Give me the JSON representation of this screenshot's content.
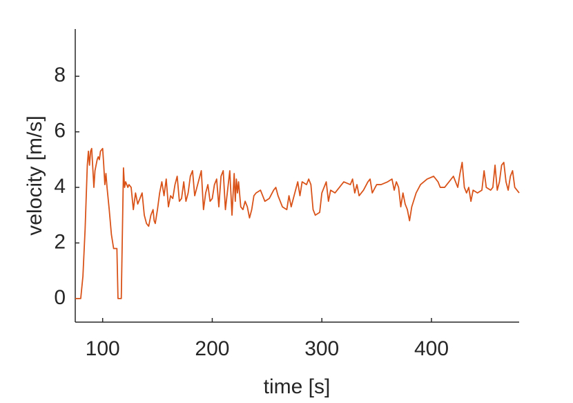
{
  "chart_data": {
    "type": "line",
    "x_label": "time [s]",
    "y_label": "velocity [m/s]",
    "xlim": [
      75,
      480
    ],
    "ylim": [
      -0.85,
      9.7
    ],
    "xticks": [
      100,
      200,
      300,
      400
    ],
    "yticks": [
      0,
      2,
      4,
      6,
      8
    ],
    "grid": false,
    "series": [
      {
        "color": "#d95319",
        "x": [
          75,
          78,
          80,
          82,
          84,
          86,
          87,
          88,
          89,
          90,
          92,
          93,
          95,
          96,
          97,
          98,
          100,
          101,
          102,
          103,
          104,
          106,
          108,
          110,
          113,
          114,
          117,
          119,
          120,
          121,
          123,
          124,
          126,
          128,
          130,
          132,
          134,
          136,
          138,
          140,
          142,
          144,
          146,
          147,
          148,
          150,
          152,
          154,
          156,
          158,
          160,
          162,
          164,
          166,
          168,
          170,
          172,
          174,
          176,
          178,
          180,
          182,
          184,
          186,
          188,
          190,
          192,
          194,
          196,
          198,
          200,
          202,
          204,
          206,
          208,
          210,
          212,
          214,
          216,
          218,
          220,
          221,
          222,
          223,
          224,
          226,
          228,
          230,
          232,
          234,
          236,
          238,
          240,
          244,
          248,
          252,
          256,
          258,
          260,
          264,
          268,
          270,
          272,
          274,
          278,
          280,
          282,
          286,
          288,
          290,
          292,
          294,
          298,
          300,
          302,
          304,
          306,
          308,
          312,
          316,
          320,
          326,
          328,
          330,
          332,
          334,
          338,
          342,
          344,
          346,
          350,
          354,
          360,
          364,
          366,
          368,
          370,
          372,
          374,
          376,
          378,
          380,
          382,
          386,
          390,
          396,
          402,
          406,
          408,
          412,
          416,
          420,
          424,
          426,
          428,
          430,
          432,
          434,
          436,
          438,
          442,
          446,
          448,
          450,
          454,
          456,
          458,
          460,
          462,
          464,
          466,
          468,
          470,
          472,
          474,
          476,
          480
        ],
        "values": [
          0,
          0,
          0,
          0.8,
          2.5,
          4.8,
          5.3,
          4.8,
          5.3,
          5.4,
          4.0,
          4.6,
          5.0,
          5.1,
          5.0,
          5.3,
          5.4,
          4.8,
          4.1,
          4.5,
          4.0,
          3.2,
          2.3,
          1.8,
          1.8,
          0,
          0,
          4.7,
          4.0,
          4.2,
          4.0,
          4.1,
          4.0,
          3.2,
          3.8,
          3.4,
          3.6,
          3.8,
          3.0,
          2.7,
          2.6,
          3.0,
          3.2,
          2.8,
          2.7,
          3.2,
          3.8,
          4.2,
          3.7,
          4.3,
          3.3,
          3.7,
          3.6,
          4.1,
          4.4,
          3.5,
          3.6,
          4.2,
          3.5,
          3.8,
          4.4,
          4.6,
          3.7,
          4.0,
          4.3,
          4.6,
          3.2,
          3.8,
          4.1,
          3.5,
          3.6,
          4.1,
          4.3,
          3.3,
          4.4,
          4.6,
          3.2,
          3.9,
          4.6,
          3.0,
          4.5,
          3.5,
          4.3,
          3.8,
          4.2,
          3.3,
          3.2,
          3.5,
          3.3,
          2.9,
          3.2,
          3.7,
          3.8,
          3.9,
          3.5,
          3.6,
          3.9,
          4.0,
          3.7,
          3.3,
          3.2,
          3.7,
          3.3,
          3.6,
          4.2,
          3.7,
          4.2,
          4.1,
          4.3,
          4.1,
          3.2,
          3.0,
          3.1,
          3.8,
          4.0,
          4.2,
          3.5,
          3.9,
          3.8,
          4.0,
          4.2,
          4.1,
          4.3,
          3.8,
          4.1,
          3.7,
          3.9,
          4.2,
          4.3,
          3.8,
          4.1,
          4.1,
          4.2,
          4.3,
          3.9,
          4.2,
          4.0,
          3.3,
          3.8,
          3.4,
          3.2,
          2.8,
          3.3,
          3.8,
          4.1,
          4.3,
          4.4,
          4.2,
          4.0,
          4.0,
          4.2,
          4.4,
          4.0,
          4.5,
          4.9,
          4.0,
          3.8,
          4.0,
          3.5,
          3.9,
          3.8,
          3.9,
          4.6,
          4.0,
          3.9,
          4.0,
          4.8,
          3.9,
          4.2,
          4.8,
          4.9,
          4.2,
          3.9,
          4.4,
          4.6,
          4.0,
          3.8
        ]
      }
    ]
  }
}
